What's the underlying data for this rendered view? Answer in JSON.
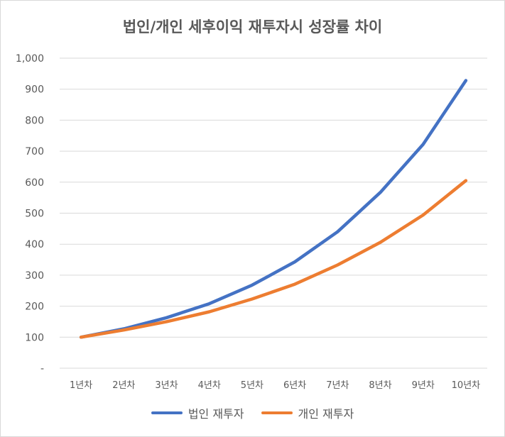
{
  "chart_data": {
    "type": "line",
    "title": "법인/개인 세후이익 재투자시 성장률 차이",
    "categories": [
      "1년차",
      "2년차",
      "3년차",
      "4년차",
      "5년차",
      "6년차",
      "7년차",
      "8년차",
      "9년차",
      "10년차"
    ],
    "series": [
      {
        "name": "법인 재투자",
        "color": "#4472C4",
        "values": [
          100,
          127,
          163,
          208,
          268,
          343,
          440,
          567,
          722,
          928
        ]
      },
      {
        "name": "개인 재투자",
        "color": "#ED7D31",
        "values": [
          100,
          123,
          150,
          182,
          223,
          271,
          333,
          406,
          494,
          605
        ]
      }
    ],
    "yticks": [
      "-",
      "100",
      "200",
      "300",
      "400",
      "500",
      "600",
      "700",
      "800",
      "900",
      "1,000"
    ],
    "ylim": [
      0,
      1000
    ],
    "grid": true,
    "legend_position": "bottom"
  }
}
